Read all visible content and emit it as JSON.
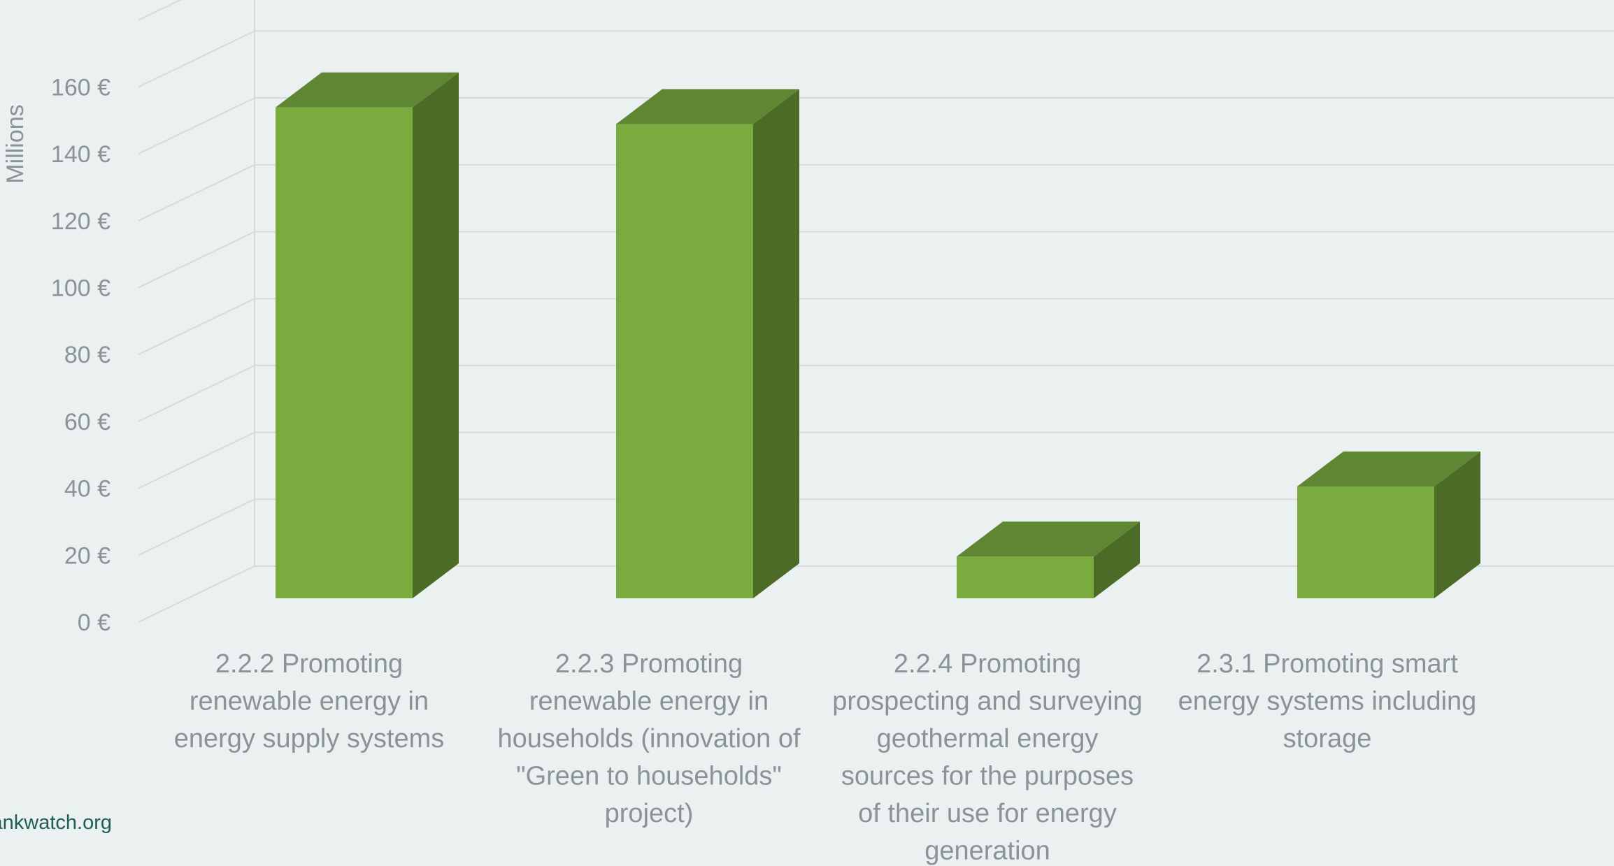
{
  "chart_data": {
    "type": "bar",
    "style": "3d",
    "categories": [
      "2.2.2 Promoting renewable energy in energy supply systems",
      "2.2.3 Promoting renewable energy in households (innovation of \"Green to households\" project)",
      "2.2.4 Promoting prospecting and surveying geothermal energy sources for the purposes of their use for energy generation",
      "2.3.1 Promoting smart energy systems including storage"
    ],
    "category_lines": [
      [
        "2.2.2 Promoting",
        "renewable energy in",
        "energy supply systems"
      ],
      [
        "2.2.3 Promoting",
        "renewable energy in",
        "households (innovation of",
        "\"Green to households\"",
        "project)"
      ],
      [
        "2.2.4 Promoting",
        "prospecting and surveying",
        "geothermal energy",
        "sources for the purposes",
        "of their use for energy",
        "generation"
      ],
      [
        "2.3.1 Promoting smart",
        "energy systems including",
        "storage"
      ]
    ],
    "values": [
      147,
      142,
      12.5,
      33.5
    ],
    "ylabel": "Millions",
    "ylim": [
      0,
      180
    ],
    "yticks": [
      0,
      20,
      40,
      60,
      80,
      100,
      120,
      140,
      160
    ],
    "ytick_labels": [
      "0 €",
      "20 €",
      "40 €",
      "60 €",
      "80 €",
      "100 €",
      "120 €",
      "140 €",
      "160 €"
    ],
    "grid": true,
    "legend": "none"
  },
  "colors": {
    "bar_front": "#7aab3e",
    "bar_top": "#5f8733",
    "bar_side": "#4c6b27",
    "grid": "#d6dadb",
    "background": "#ebf0f0"
  },
  "footer": {
    "source_text": "bankwatch.org"
  }
}
